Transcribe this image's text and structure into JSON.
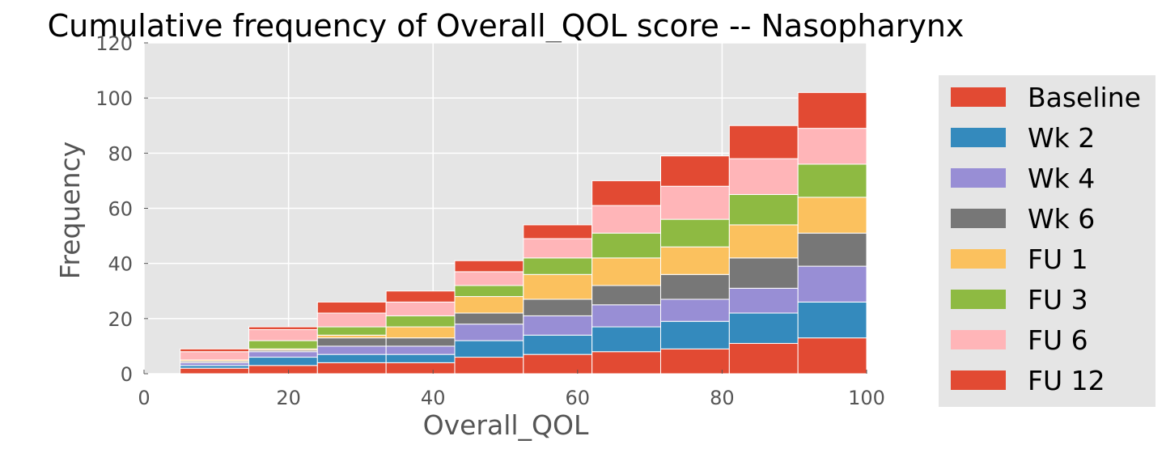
{
  "chart_data": {
    "type": "bar",
    "stacked": true,
    "title": "Cumulative frequency of Overall_QOL score -- Nasopharynx",
    "xlabel": "Overall_QOL",
    "ylabel": "Frequency",
    "xlim": [
      0,
      100
    ],
    "ylim": [
      0,
      120
    ],
    "xticks": [
      0,
      20,
      40,
      60,
      80,
      100
    ],
    "yticks": [
      0,
      20,
      40,
      60,
      80,
      100,
      120
    ],
    "grid": true,
    "legend_position": "right",
    "bins": [
      {
        "x0": 5,
        "x1": 14.5
      },
      {
        "x0": 14.5,
        "x1": 24
      },
      {
        "x0": 24,
        "x1": 33.5
      },
      {
        "x0": 33.5,
        "x1": 43
      },
      {
        "x0": 43,
        "x1": 52.5
      },
      {
        "x0": 52.5,
        "x1": 62
      },
      {
        "x0": 62,
        "x1": 71.5
      },
      {
        "x0": 71.5,
        "x1": 81
      },
      {
        "x0": 81,
        "x1": 90.5
      },
      {
        "x0": 90.5,
        "x1": 100
      }
    ],
    "series": [
      {
        "name": "Baseline",
        "color": "#E24A33",
        "values": [
          2,
          3,
          4,
          4,
          6,
          7,
          8,
          9,
          11,
          13
        ]
      },
      {
        "name": "Wk 2",
        "color": "#348ABD",
        "values": [
          1,
          3,
          3,
          3,
          6,
          7,
          9,
          10,
          11,
          13
        ]
      },
      {
        "name": "Wk 4",
        "color": "#988ED5",
        "values": [
          1,
          2,
          3,
          3,
          6,
          7,
          8,
          8,
          9,
          13
        ]
      },
      {
        "name": "Wk 6",
        "color": "#777777",
        "values": [
          0.5,
          0.5,
          3,
          3,
          4,
          6,
          7,
          9,
          11,
          12
        ]
      },
      {
        "name": "FU 1",
        "color": "#FBC15E",
        "values": [
          0.5,
          0.5,
          1,
          4,
          6,
          9,
          10,
          10,
          12,
          13
        ]
      },
      {
        "name": "FU 3",
        "color": "#8EBA42",
        "values": [
          0,
          3,
          3,
          4,
          4,
          6,
          9,
          10,
          11,
          12
        ]
      },
      {
        "name": "FU 6",
        "color": "#FFB5B8",
        "values": [
          3,
          4,
          5,
          5,
          5,
          7,
          10,
          12,
          13,
          13
        ]
      },
      {
        "name": "FU 12",
        "color": "#E24A33",
        "values": [
          1,
          1,
          4,
          4,
          4,
          5,
          9,
          11,
          12,
          13
        ]
      }
    ]
  }
}
